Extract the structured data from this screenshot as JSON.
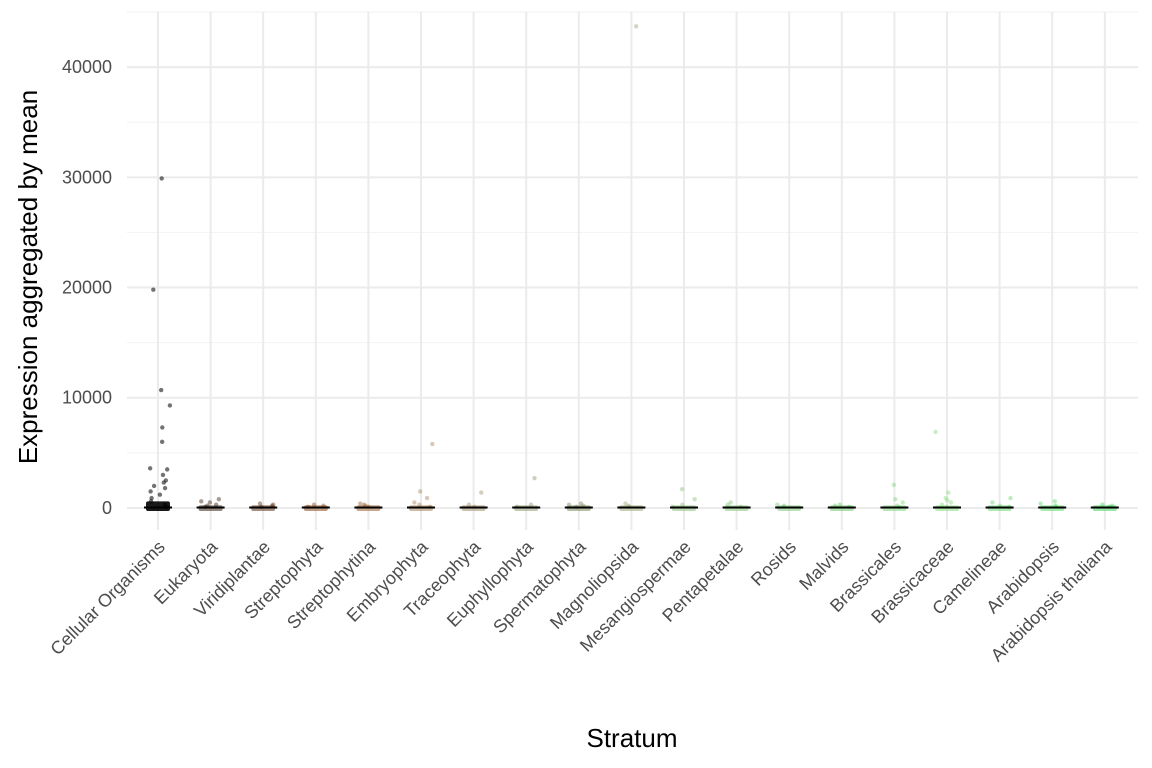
{
  "chart_data": {
    "type": "scatter",
    "title": "",
    "xlabel": "Stratum",
    "ylabel": "Expression aggregated by mean",
    "ylim": [
      -2000,
      45000
    ],
    "yticks": [
      0,
      10000,
      20000,
      30000,
      40000
    ],
    "grid": true,
    "legend": "none",
    "categories": [
      "Cellular Organisms",
      "Eukaryota",
      "Viridiplantae",
      "Streptophyta",
      "Streptophytina",
      "Embryophyta",
      "Traceophyta",
      "Euphyllophyta",
      "Spermatophyta",
      "Magnoliopsida",
      "Mesangiospermae",
      "Pentapetalae",
      "Rosids",
      "Malvids",
      "Brassicales",
      "Brassicaceae",
      "Camelineae",
      "Arabidopsis",
      "Arabidopsis thaliana"
    ],
    "colors": [
      "#000000",
      "#3d2412",
      "#5e3417",
      "#8b4a1f",
      "#9a6232",
      "#a8845a",
      "#a0906a",
      "#8f9a72",
      "#7a8a5a",
      "#9aa878",
      "#8cc07a",
      "#86c47a",
      "#7ecb78",
      "#72c870",
      "#7ed67a",
      "#84de7e",
      "#6cd872",
      "#5edc6a",
      "#48d45e"
    ],
    "series": [
      {
        "name": "Cellular Organisms",
        "values": [
          29900,
          19800,
          10700,
          9300,
          7300,
          6000,
          3600,
          3500,
          3000,
          2500,
          2300,
          2000,
          1800,
          1500,
          1200,
          900,
          600,
          300,
          100
        ]
      },
      {
        "name": "Eukaryota",
        "values": [
          800,
          600,
          500,
          300,
          200,
          100
        ]
      },
      {
        "name": "Viridiplantae",
        "values": [
          400,
          300,
          200,
          100
        ]
      },
      {
        "name": "Streptophyta",
        "values": [
          300,
          200,
          100
        ]
      },
      {
        "name": "Streptophytina",
        "values": [
          400,
          300,
          200,
          100
        ]
      },
      {
        "name": "Embryophyta",
        "values": [
          5800,
          1500,
          900,
          500,
          300,
          100
        ]
      },
      {
        "name": "Traceophyta",
        "values": [
          1400,
          300,
          100
        ]
      },
      {
        "name": "Euphyllophyta",
        "values": [
          2700,
          300,
          100
        ]
      },
      {
        "name": "Spermatophyta",
        "values": [
          400,
          300,
          200,
          100
        ]
      },
      {
        "name": "Magnoliopsida",
        "values": [
          43700,
          400,
          200,
          100
        ]
      },
      {
        "name": "Mesangiospermae",
        "values": [
          1700,
          800,
          300,
          100
        ]
      },
      {
        "name": "Pentapetalae",
        "values": [
          500,
          300,
          100
        ]
      },
      {
        "name": "Rosids",
        "values": [
          300,
          200,
          100
        ]
      },
      {
        "name": "Malvids",
        "values": [
          300,
          200,
          100
        ]
      },
      {
        "name": "Brassicales",
        "values": [
          2100,
          800,
          500,
          200,
          100
        ]
      },
      {
        "name": "Brassicaceae",
        "values": [
          6900,
          1400,
          900,
          700,
          500,
          300,
          100
        ]
      },
      {
        "name": "Camelineae",
        "values": [
          900,
          500,
          200,
          100
        ]
      },
      {
        "name": "Arabidopsis",
        "values": [
          600,
          400,
          200,
          100
        ]
      },
      {
        "name": "Arabidopsis thaliana",
        "values": [
          300,
          200,
          100
        ]
      }
    ]
  }
}
